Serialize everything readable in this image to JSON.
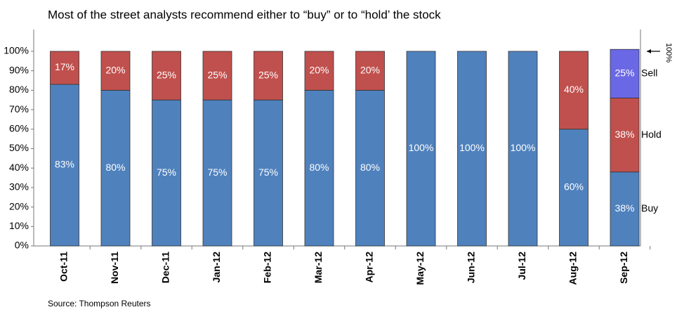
{
  "chart_data": {
    "type": "stacked_bar",
    "title": "Most of the street analysts recommend either to “buy” or to “hold’ the stock",
    "source": "Source:  Thompson Reuters",
    "annotation": "100%",
    "categories": [
      "Oct-11",
      "Nov-11",
      "Dec-11",
      "Jan-12",
      "Feb-12",
      "Mar-12",
      "Apr-12",
      "May-12",
      "Jun-12",
      "Jul-12",
      "Aug-12",
      "Sep-12"
    ],
    "series": [
      {
        "name": "Buy",
        "color": "#4f81bd",
        "values": [
          83,
          80,
          75,
          75,
          75,
          80,
          80,
          100,
          100,
          100,
          60,
          38
        ],
        "value_labels": [
          "83%",
          "80%",
          "75%",
          "75%",
          "75%",
          "80%",
          "80%",
          "100%",
          "100%",
          "100%",
          "60%",
          "38%"
        ]
      },
      {
        "name": "Hold",
        "color": "#c0504d",
        "values": [
          17,
          20,
          25,
          25,
          25,
          20,
          20,
          null,
          null,
          null,
          40,
          38
        ],
        "value_labels": [
          "17%",
          "20%",
          "25%",
          "25%",
          "25%",
          "20%",
          "20%",
          null,
          null,
          null,
          "40%",
          "38%"
        ]
      },
      {
        "name": "Sell",
        "color": "#6b68e6",
        "values": [
          null,
          null,
          null,
          null,
          null,
          null,
          null,
          null,
          null,
          null,
          null,
          25
        ],
        "value_labels": [
          null,
          null,
          null,
          null,
          null,
          null,
          null,
          null,
          null,
          null,
          null,
          "25%"
        ]
      }
    ],
    "ylim": [
      0,
      100
    ],
    "yticks": [
      {
        "value": 0,
        "label": "0%"
      },
      {
        "value": 10,
        "label": "10%"
      },
      {
        "value": 20,
        "label": "20%"
      },
      {
        "value": 30,
        "label": "30%"
      },
      {
        "value": 40,
        "label": "40%"
      },
      {
        "value": 50,
        "label": "50%"
      },
      {
        "value": 60,
        "label": "60%"
      },
      {
        "value": 70,
        "label": "70%"
      },
      {
        "value": 80,
        "label": "80%"
      },
      {
        "value": 90,
        "label": "90%"
      },
      {
        "value": 100,
        "label": "100%"
      }
    ],
    "grid": false
  }
}
